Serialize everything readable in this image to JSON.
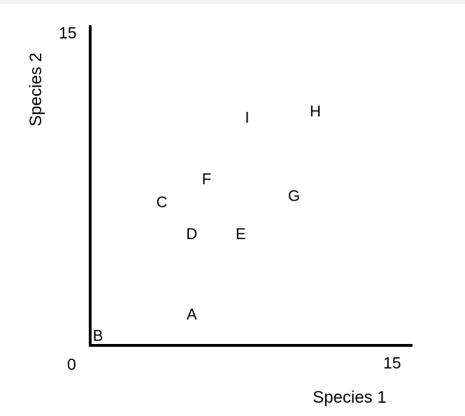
{
  "chart_data": {
    "type": "scatter",
    "title": "",
    "xlabel": "Species 1",
    "ylabel": "Species 2",
    "xlim": [
      0,
      15
    ],
    "ylim": [
      0,
      15
    ],
    "x_ticks": [
      "0",
      "15"
    ],
    "y_ticks": [
      "15"
    ],
    "grid": false,
    "legend": "none",
    "marker": "text-label",
    "points": [
      {
        "label": "A",
        "x": 4.7,
        "y": 1.4
      },
      {
        "label": "B",
        "x": 0.3,
        "y": 0.4
      },
      {
        "label": "C",
        "x": 3.3,
        "y": 6.7
      },
      {
        "label": "D",
        "x": 4.7,
        "y": 5.2
      },
      {
        "label": "E",
        "x": 7.0,
        "y": 5.2
      },
      {
        "label": "F",
        "x": 5.4,
        "y": 7.8
      },
      {
        "label": "G",
        "x": 9.5,
        "y": 7.0
      },
      {
        "label": "H",
        "x": 10.5,
        "y": 11.0
      },
      {
        "label": "I",
        "x": 7.3,
        "y": 10.7
      }
    ]
  }
}
